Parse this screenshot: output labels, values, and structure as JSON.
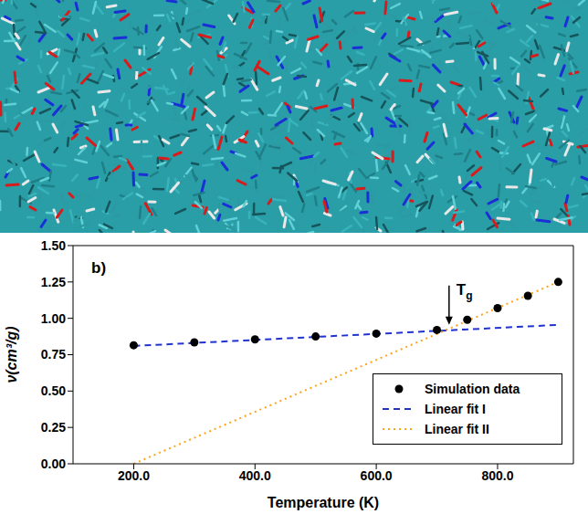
{
  "chart_data": {
    "type": "scatter",
    "panel_label": "b)",
    "x_label": "Temperature (K)",
    "y_label": "ν(cm³/g)",
    "xlim": [
      100,
      925
    ],
    "xticks": [
      {
        "value": 200,
        "label": "200.0"
      },
      {
        "value": 400,
        "label": "400.0"
      },
      {
        "value": 600,
        "label": "600.0"
      },
      {
        "value": 800,
        "label": "800.0"
      }
    ],
    "ylim": [
      0,
      1.5
    ],
    "yticks": [
      {
        "value": 0,
        "label": "0.00"
      },
      {
        "value": 0.25,
        "label": "0.25"
      },
      {
        "value": 0.5,
        "label": "0.50"
      },
      {
        "value": 0.75,
        "label": "0.75"
      },
      {
        "value": 1,
        "label": "1.00"
      },
      {
        "value": 1.25,
        "label": "1.25"
      },
      {
        "value": 1.5,
        "label": "1.50"
      }
    ],
    "legend": "lower right",
    "series": [
      {
        "name": "Simulation data",
        "type": "scatter",
        "color": "#000000",
        "marker": "circle",
        "x": [
          200,
          300,
          400,
          500,
          600,
          700,
          750,
          800,
          850,
          900
        ],
        "values": [
          0.815,
          0.835,
          0.855,
          0.875,
          0.895,
          0.92,
          0.99,
          1.07,
          1.155,
          1.25
        ]
      },
      {
        "name": "Linear fit I",
        "type": "line",
        "color": "#2233cc",
        "line_style": "dashed",
        "x": [
          200,
          900
        ],
        "values": [
          0.81,
          0.955
        ]
      },
      {
        "name": "Linear fit II",
        "type": "line",
        "color": "#ffa31a",
        "line_style": "dotted",
        "x": [
          200,
          900
        ],
        "values": [
          0.0,
          1.25
        ]
      }
    ],
    "annotations": [
      {
        "text": "T",
        "subscript": "g",
        "x": 720,
        "y": 0.95
      }
    ]
  }
}
